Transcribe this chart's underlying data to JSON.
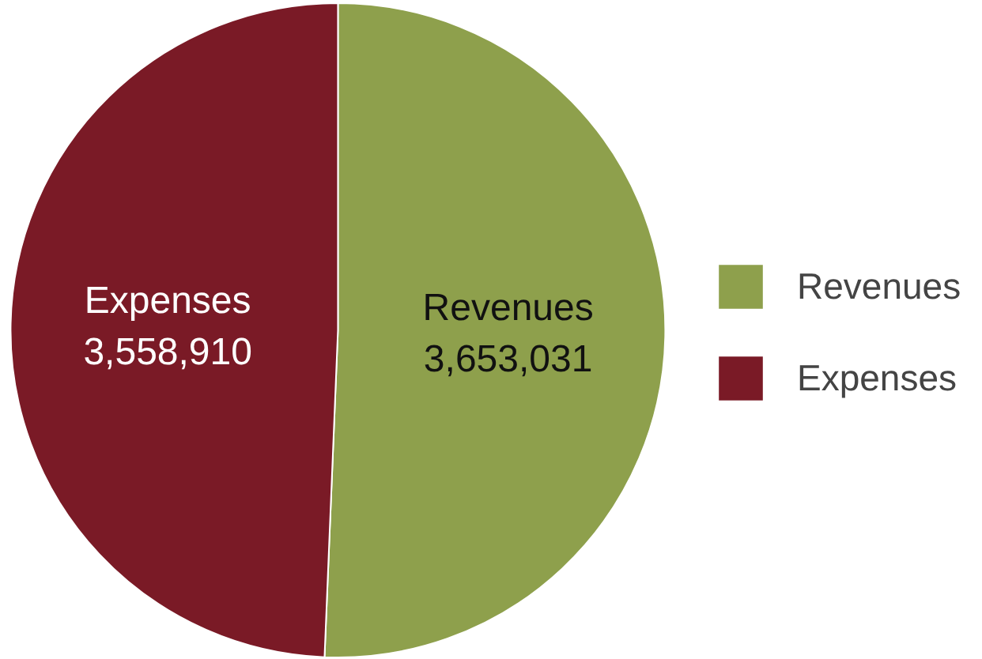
{
  "chart_data": {
    "type": "pie",
    "categories": [
      "Revenues",
      "Expenses"
    ],
    "values": [
      3653031,
      3558910
    ],
    "colors": [
      "#8ea04c",
      "#7a1a26"
    ],
    "value_labels": [
      "3,653,031",
      "3,558,910"
    ],
    "legend": "right"
  }
}
